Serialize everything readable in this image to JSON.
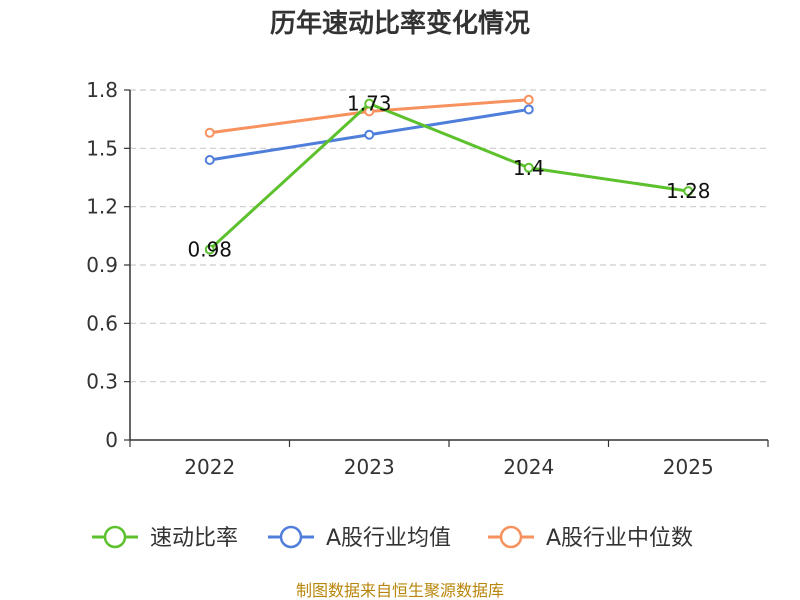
{
  "chart_data": {
    "type": "line",
    "title": "历年速动比率变化情况",
    "categories": [
      "2022",
      "2023",
      "2024",
      "2025"
    ],
    "ylim": [
      0,
      1.8
    ],
    "yticks": [
      "0",
      "0.3",
      "0.6",
      "0.9",
      "1.2",
      "1.5",
      "1.8"
    ],
    "grid": true,
    "legend_position": "bottom",
    "series": [
      {
        "name": "速动比率",
        "color": "#5cc12c",
        "values": [
          0.98,
          1.73,
          1.4,
          1.28
        ],
        "labels": [
          "0.98",
          "1.73",
          "1.4",
          "1.28"
        ]
      },
      {
        "name": "A股行业均值",
        "color": "#4f7fdb",
        "values": [
          1.44,
          1.57,
          1.7,
          null
        ]
      },
      {
        "name": "A股行业中位数",
        "color": "#f7925e",
        "values": [
          1.58,
          1.69,
          1.75,
          null
        ]
      }
    ],
    "source": "制图数据来自恒生聚源数据库"
  }
}
